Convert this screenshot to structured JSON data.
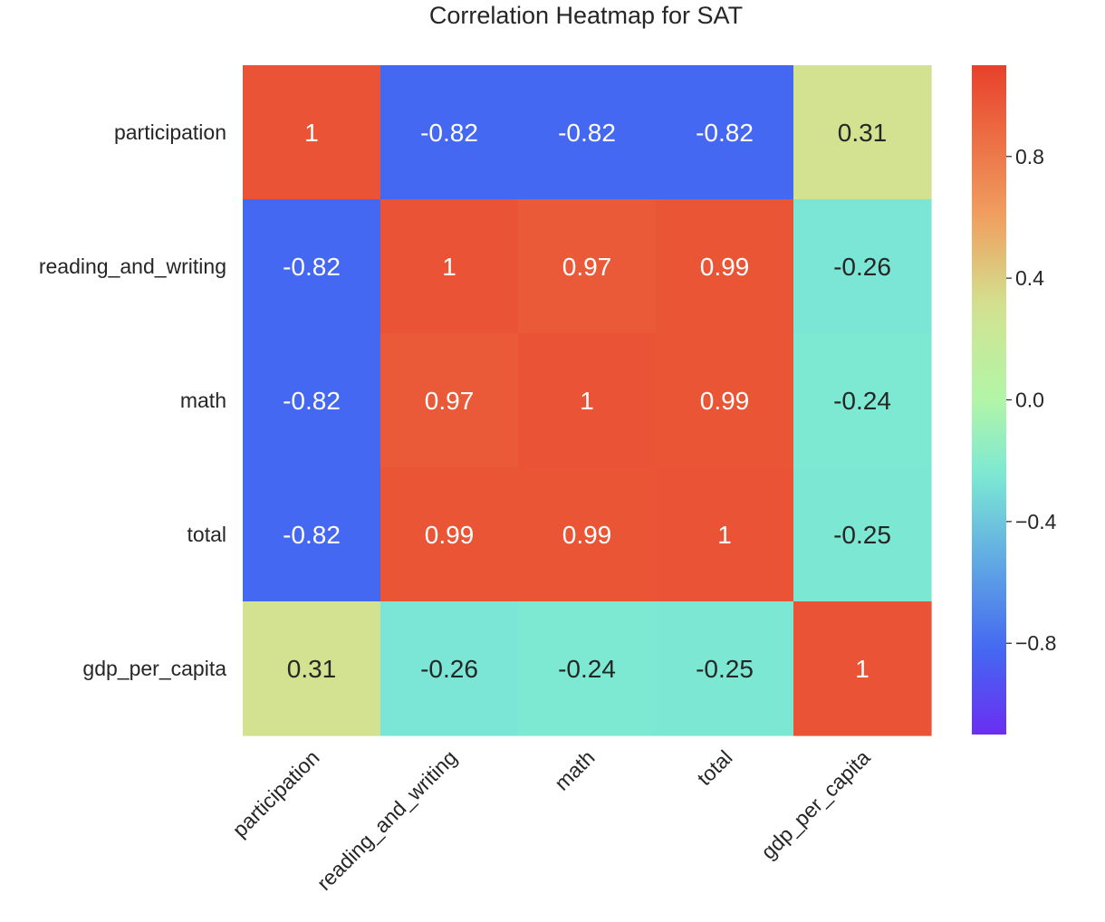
{
  "chart_data": {
    "type": "heatmap",
    "title": "Correlation Heatmap for SAT",
    "xlabel": "",
    "ylabel": "",
    "row_labels": [
      "participation",
      "reading_and_writing",
      "math",
      "total",
      "gdp_per_capita"
    ],
    "col_labels": [
      "participation",
      "reading_and_writing",
      "math",
      "total",
      "gdp_per_capita"
    ],
    "values": [
      [
        1.0,
        -0.82,
        -0.82,
        -0.82,
        0.31
      ],
      [
        -0.82,
        1.0,
        0.97,
        0.99,
        -0.26
      ],
      [
        -0.82,
        0.97,
        1.0,
        0.99,
        -0.24
      ],
      [
        -0.82,
        0.99,
        0.99,
        1.0,
        -0.25
      ],
      [
        0.31,
        -0.26,
        -0.24,
        -0.25,
        1.0
      ]
    ],
    "annotations": [
      [
        "1",
        "-0.82",
        "-0.82",
        "-0.82",
        "0.31"
      ],
      [
        "-0.82",
        "1",
        "0.97",
        "0.99",
        "-0.26"
      ],
      [
        "-0.82",
        "0.97",
        "1",
        "0.99",
        "-0.24"
      ],
      [
        "-0.82",
        "0.99",
        "0.99",
        "1",
        "-0.25"
      ],
      [
        "0.31",
        "-0.26",
        "-0.24",
        "-0.25",
        "1"
      ]
    ],
    "colormap": "rainbow",
    "vmin": -1.1,
    "vmax": 1.1,
    "colorbar_ticks": [
      0.8,
      0.4,
      0.0,
      -0.4,
      -0.8
    ],
    "colorbar_tick_labels": [
      "0.8",
      "0.4",
      "0.0",
      "−0.4",
      "−0.8"
    ],
    "colorbar_location": "right",
    "colors": {
      "low": "#6b2ef2",
      "blue": "#4468f2",
      "teal": "#7ce8d4",
      "green": "#b2f5a8",
      "olive": "#d2e290",
      "orange": "#f0a060",
      "red": "#e8402a",
      "text_light": "#ffffff",
      "text_dark": "#262626"
    }
  }
}
